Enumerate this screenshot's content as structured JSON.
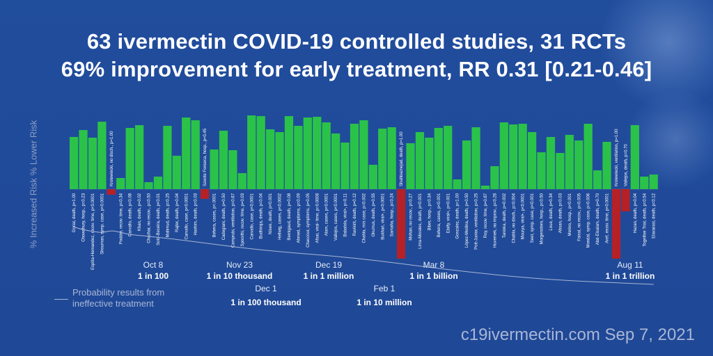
{
  "title_line_1": "63 ivermectin COVID-19 controlled studies, 31 RCTs",
  "title_line_2": "69% improvement for early treatment, RR 0.31 [0.21-0.46]",
  "y_axis_label": "% Increased Risk % Lower Risk",
  "legend": {
    "line_1": "Probability results from",
    "line_2": "ineffective treatment"
  },
  "footer": "c19ivermectin.com Sep 7, 2021",
  "colors": {
    "benefit": "#2bc24a",
    "harm": "#b52126",
    "background": "#1f4a99",
    "text": "#ffffff",
    "muted": "#a9b6d6"
  },
  "chart_data": {
    "type": "bar",
    "ylabel": "% Increased Risk % Lower Risk",
    "studies": [
      {
        "label": "Gorial, death, p=1.00",
        "value": 75
      },
      {
        "label": "Chowdhury, hosp., p=0.23",
        "value": 85
      },
      {
        "label": "Espitia-Hernandez, recov. time, p<0.0001",
        "value": 74
      },
      {
        "label": "Shouman, symp. case, p<0.0001",
        "value": 97
      },
      {
        "label": "Krolewiecki, no disch., p=1.00",
        "value": -8,
        "label_position": "top"
      },
      {
        "label": "Podder, recov. time, p=0.34",
        "value": 16
      },
      {
        "label": "Carvallo, death, p=0.08",
        "value": 88
      },
      {
        "label": "Khan, death, p=0.02",
        "value": 92
      },
      {
        "label": "Chachar, no recov., p=0.50",
        "value": 10
      },
      {
        "label": "Soto-Beceira, death, p<0.01",
        "value": 18
      },
      {
        "label": "Mahmud, death, p=0.25",
        "value": 91
      },
      {
        "label": "Rajter, death, p=0.04",
        "value": 48
      },
      {
        "label": "Carvallo, case, p<0.0001",
        "value": 103
      },
      {
        "label": "Hashim, death, p=0.03",
        "value": 99
      },
      {
        "label": "Szente Fonseca, hosp., p=0.45",
        "value": -14,
        "label_position": "top"
      },
      {
        "label": "Behera, cases, p<.0001",
        "value": 57
      },
      {
        "label": "Cadegiani, death, p=0.50",
        "value": 84
      },
      {
        "label": "Camprubi, ventilation, p=0.67",
        "value": 56
      },
      {
        "label": "Spoorthi, recov. time, p=0.03",
        "value": 23
      },
      {
        "label": "Carvallo, case, p<0.0001",
        "value": 106
      },
      {
        "label": "Budhiraja, death, p=0.04",
        "value": 105
      },
      {
        "label": "Nisee, death, p<0.001",
        "value": 86
      },
      {
        "label": "Hellwig, cases, p<0.0002",
        "value": 82
      },
      {
        "label": "Bernigaud, death, p=0.08",
        "value": 105
      },
      {
        "label": "Ahmed, symptoms, p=0.09",
        "value": 91
      },
      {
        "label": "Chaccour, symptoms, p=0.05",
        "value": 103
      },
      {
        "label": "Afsar, viral- time, p=0.0008",
        "value": 104
      },
      {
        "label": "Alam, cases, p<0.0001",
        "value": 96
      },
      {
        "label": "Vallejos, cases, p<0.0001",
        "value": 80
      },
      {
        "label": "Babalola, viral+, p=0.11",
        "value": 67
      },
      {
        "label": "Ravikirti, death, p=0.12",
        "value": 94
      },
      {
        "label": "Chahla, m/s case, p=0.002",
        "value": 99
      },
      {
        "label": "Okumus, death, p=0.55",
        "value": 35
      },
      {
        "label": "Bukhari, viral+, p<0.0001",
        "value": 87
      },
      {
        "label": "Samaha, hosp., p=0.24",
        "value": 89
      },
      {
        "label": "Shahbaznejad, death, p=1.00",
        "value": -100,
        "label_position": "top"
      },
      {
        "label": "Mohan, no recov., p=0.27",
        "value": 66
      },
      {
        "label": "Lima-Morales, death, p<0.001",
        "value": 82
      },
      {
        "label": "Biber, hosp., p=0.34",
        "value": 74
      },
      {
        "label": "Behera, cases, p<0.001",
        "value": 88
      },
      {
        "label": "Elalfy, viral+, p<0.001",
        "value": 91
      },
      {
        "label": "Gonzalez, death, p=1.00",
        "value": 14
      },
      {
        "label": "López-Medina, death, p=0.50",
        "value": 70
      },
      {
        "label": "Pott-Junior, ventilation, p=0.25",
        "value": 89
      },
      {
        "label": "Roy, recov. time, p=0.87",
        "value": 5
      },
      {
        "label": "Huvemek, no improv., p=0.28",
        "value": 33
      },
      {
        "label": "Tanioka, death, p=0.002",
        "value": 96
      },
      {
        "label": "Chahla, no disch., p=0.004",
        "value": 93
      },
      {
        "label": "Mourya, viral+, p<0.0001",
        "value": 94
      },
      {
        "label": "Seet, symp. case, p<0.001",
        "value": 82
      },
      {
        "label": "Morgenstern, hosp., p=0.50",
        "value": 53
      },
      {
        "label": "Loue, death, p=0.34",
        "value": 75
      },
      {
        "label": "Ahsan, death, p=0.03",
        "value": 52
      },
      {
        "label": "Merino, hosp., p<0.001",
        "value": 78
      },
      {
        "label": "Faisal, no recov., p=0.005",
        "value": 70
      },
      {
        "label": "Mondal, symp. case, p=0.006",
        "value": 94
      },
      {
        "label": "Abd-Elsalam, death, p=0.70",
        "value": 27
      },
      {
        "label": "Aref, recov. time, p<0.0001",
        "value": 68
      },
      {
        "label": "Krolewiecki, ventilation, p=1.00",
        "value": -100,
        "label_position": "top"
      },
      {
        "label": "Vallejos, death, p=0.70",
        "value": -32,
        "label_position": "top"
      },
      {
        "label": "Hazan, death, p=0.04",
        "value": 92
      },
      {
        "label": "Together Trial, death, p=0.54",
        "value": 18
      },
      {
        "label": "Elavarasi, death, p=0.12",
        "value": 21
      }
    ],
    "probability_annotations": [
      {
        "date": "Oct 8",
        "text": "1 in 100",
        "row": "upper"
      },
      {
        "date": "Nov 23",
        "text": "1 in 10 thousand",
        "row": "upper"
      },
      {
        "date": "Dec 19",
        "text": "1 in 1 million",
        "row": "upper"
      },
      {
        "date": "Mar 8",
        "text": "1 in 1 billion",
        "row": "upper"
      },
      {
        "date": "Aug 11",
        "text": "1 in 1 trillion",
        "row": "upper"
      },
      {
        "date": "Dec 1",
        "text": "1 in 100 thousand",
        "row": "lower"
      },
      {
        "date": "Feb 1",
        "text": "1 in 10 million",
        "row": "lower"
      }
    ],
    "probability_curve": [
      {
        "study_index": 0,
        "log10_odds": 0.2
      },
      {
        "study_index": 1,
        "log10_odds": 0.8
      },
      {
        "study_index": 2,
        "log10_odds": 1.1
      },
      {
        "study_index": 3,
        "log10_odds": 1.4
      },
      {
        "study_index": 4,
        "log10_odds": 0.9
      },
      {
        "study_index": 5,
        "log10_odds": 1.3
      },
      {
        "study_index": 6,
        "log10_odds": 1.8
      },
      {
        "study_index": 8,
        "log10_odds": 2.1
      },
      {
        "study_index": 12,
        "log10_odds": 3.0
      },
      {
        "study_index": 20,
        "log10_odds": 5.0
      },
      {
        "study_index": 30,
        "log10_odds": 6.5
      },
      {
        "study_index": 40,
        "log10_odds": 9.0
      },
      {
        "study_index": 50,
        "log10_odds": 11.0
      },
      {
        "study_index": 62,
        "log10_odds": 12.0
      }
    ]
  }
}
